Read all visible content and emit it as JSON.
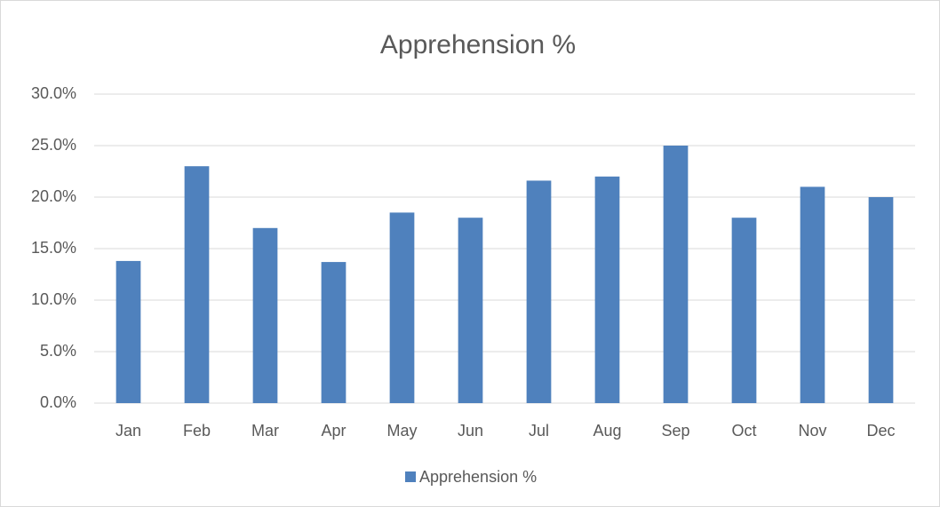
{
  "chart_data": {
    "type": "bar",
    "title": "Apprehension %",
    "categories": [
      "Jan",
      "Feb",
      "Mar",
      "Apr",
      "May",
      "Jun",
      "Jul",
      "Aug",
      "Sep",
      "Oct",
      "Nov",
      "Dec"
    ],
    "series": [
      {
        "name": "Apprehension %",
        "color": "#4f81bd",
        "values": [
          13.8,
          23,
          17,
          13.7,
          18.5,
          18,
          21.6,
          22,
          25,
          18,
          21,
          20
        ]
      }
    ],
    "ylim": [
      0,
      30
    ],
    "yticks": [
      {
        "value": 0,
        "label": "0.0%"
      },
      {
        "value": 5,
        "label": "5.0%"
      },
      {
        "value": 10,
        "label": "10.0%"
      },
      {
        "value": 15,
        "label": "15.0%"
      },
      {
        "value": 20,
        "label": "20.0%"
      },
      {
        "value": 25,
        "label": "25.0%"
      },
      {
        "value": 30,
        "label": "30.0%"
      }
    ],
    "grid": true,
    "legend": "bottom"
  }
}
